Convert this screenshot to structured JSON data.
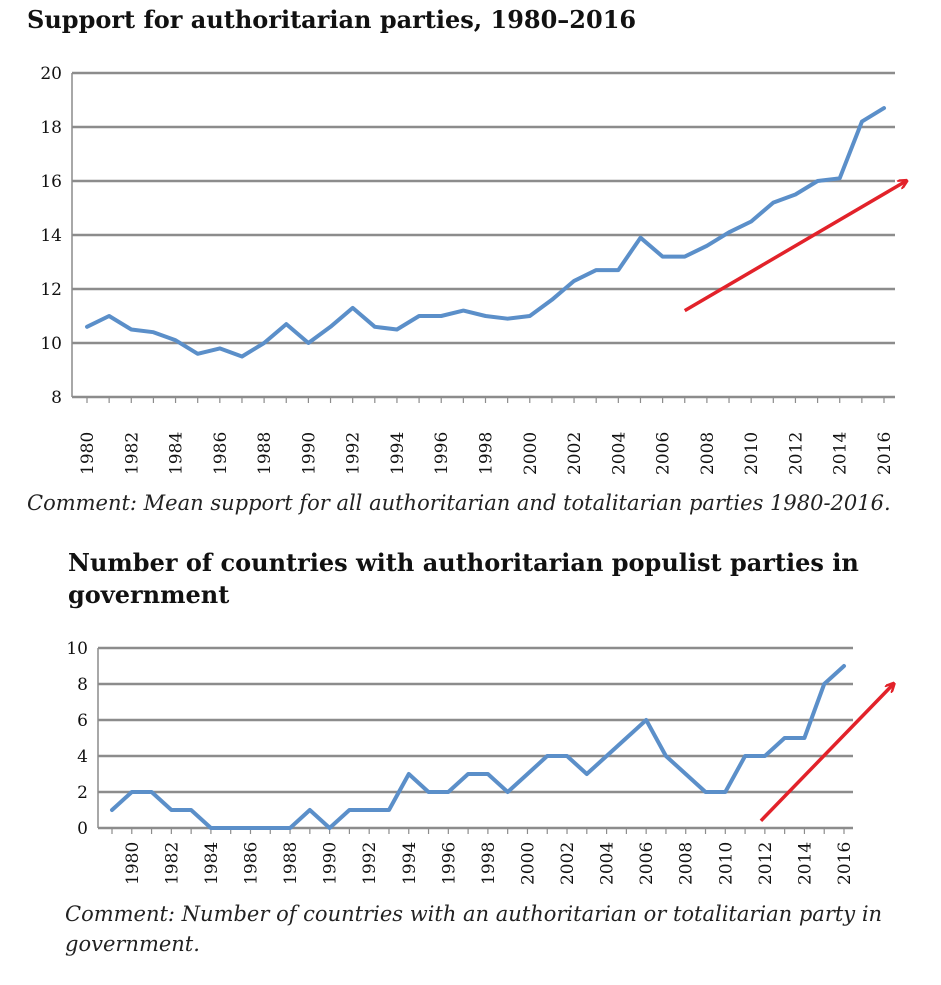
{
  "chart_data": [
    {
      "type": "line",
      "title": "Support for authoritarian parties, 1980–2016",
      "comment": "Comment: Mean support for all authoritarian and totalitarian parties 1980-2016.",
      "x": [
        1980,
        1981,
        1982,
        1983,
        1984,
        1985,
        1986,
        1987,
        1988,
        1989,
        1990,
        1991,
        1992,
        1993,
        1994,
        1995,
        1996,
        1997,
        1998,
        1999,
        2000,
        2001,
        2002,
        2003,
        2004,
        2005,
        2006,
        2007,
        2008,
        2009,
        2010,
        2011,
        2012,
        2013,
        2014,
        2015,
        2016
      ],
      "series": [
        {
          "values": [
            10.6,
            11.0,
            10.5,
            10.4,
            10.1,
            9.6,
            9.8,
            9.5,
            10.0,
            10.7,
            10.0,
            10.6,
            11.3,
            10.6,
            10.5,
            11.0,
            11.0,
            11.2,
            11.0,
            10.9,
            11.0,
            11.6,
            12.3,
            12.7,
            12.7,
            13.9,
            13.2,
            13.2,
            13.6,
            14.1,
            14.5,
            15.2,
            15.5,
            16.0,
            16.1,
            18.2,
            18.7
          ]
        }
      ],
      "ylim": [
        8,
        20
      ],
      "yticks": [
        8,
        10,
        12,
        14,
        16,
        18,
        20
      ],
      "xticks": [
        1980,
        1982,
        1984,
        1986,
        1988,
        1990,
        1992,
        1994,
        1996,
        1998,
        2000,
        2002,
        2004,
        2006,
        2008,
        2010,
        2012,
        2014,
        2016
      ],
      "grid": true,
      "line_color": "#5b8fc9",
      "annotation": {
        "type": "arrow",
        "color": "#e2222a",
        "from": [
          2007,
          11.2
        ],
        "to": [
          2017,
          16.0
        ]
      }
    },
    {
      "type": "line",
      "title": "Number of countries with authoritarian populist parties in government",
      "comment": "Comment: Number of countries with an authoritarian or totalitarian party in government.",
      "x": [
        1979,
        1980,
        1981,
        1982,
        1983,
        1984,
        1985,
        1986,
        1987,
        1988,
        1989,
        1990,
        1991,
        1992,
        1993,
        1994,
        1995,
        1996,
        1997,
        1998,
        1999,
        2000,
        2001,
        2002,
        2003,
        2004,
        2005,
        2006,
        2007,
        2008,
        2009,
        2010,
        2011,
        2012,
        2013,
        2014,
        2015,
        2016
      ],
      "series": [
        {
          "values": [
            1,
            2,
            2,
            1,
            1,
            0,
            0,
            0,
            0,
            0,
            1,
            0,
            1,
            1,
            1,
            3,
            2,
            2,
            3,
            3,
            2,
            3,
            4,
            4,
            3,
            4,
            5,
            6,
            4,
            3,
            2,
            2,
            4,
            4,
            5,
            5,
            8,
            9
          ]
        }
      ],
      "ylim": [
        0,
        10
      ],
      "yticks": [
        0,
        2,
        4,
        6,
        8,
        10
      ],
      "xticks": [
        1980,
        1982,
        1984,
        1986,
        1988,
        1990,
        1992,
        1994,
        1996,
        1998,
        2000,
        2002,
        2004,
        2006,
        2008,
        2010,
        2012,
        2014,
        2016
      ],
      "grid": true,
      "line_color": "#5b8fc9",
      "annotation": {
        "type": "arrow",
        "color": "#e2222a",
        "from": [
          2011.8,
          0.4
        ],
        "to": [
          2018.5,
          8.0
        ]
      }
    }
  ]
}
